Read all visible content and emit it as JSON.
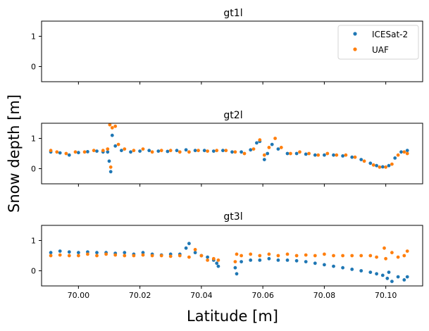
{
  "figure": {
    "ylabel": "Snow depth [m]",
    "xlabel": "Latitude [m]"
  },
  "colors": {
    "icesat2": "#1f77b4",
    "uaf": "#ff7f0e"
  },
  "chart_data": [
    {
      "type": "scatter",
      "title": "gt1l",
      "xlabel": "",
      "ylabel": "",
      "xlim": [
        69.988,
        70.112
      ],
      "ylim": [
        -0.5,
        1.5
      ],
      "yticks": [
        0,
        1
      ],
      "xticks": [
        70.0,
        70.02,
        70.04,
        70.06,
        70.08,
        70.1
      ],
      "show_xticklabels": false,
      "legend": {
        "placement": "top-right",
        "entries": [
          "ICESat-2",
          "UAF"
        ]
      },
      "series": [
        {
          "name": "ICESat-2",
          "color": "#1f77b4",
          "points": []
        },
        {
          "name": "UAF",
          "color": "#ff7f0e",
          "points": []
        }
      ]
    },
    {
      "type": "scatter",
      "title": "gt2l",
      "xlabel": "",
      "ylabel": "",
      "xlim": [
        69.988,
        70.112
      ],
      "ylim": [
        -0.5,
        1.5
      ],
      "yticks": [
        0,
        1
      ],
      "xticks": [
        70.0,
        70.02,
        70.04,
        70.06,
        70.08,
        70.1
      ],
      "show_xticklabels": false,
      "series": [
        {
          "name": "ICESat-2",
          "color": "#1f77b4",
          "points": [
            [
              69.991,
              0.55
            ],
            [
              69.994,
              0.52
            ],
            [
              69.997,
              0.45
            ],
            [
              70.0,
              0.53
            ],
            [
              70.003,
              0.56
            ],
            [
              70.006,
              0.58
            ],
            [
              70.008,
              0.55
            ],
            [
              70.0095,
              0.55
            ],
            [
              70.01,
              0.25
            ],
            [
              70.0105,
              -0.1
            ],
            [
              70.011,
              1.1
            ],
            [
              70.012,
              0.75
            ],
            [
              70.014,
              0.6
            ],
            [
              70.017,
              0.55
            ],
            [
              70.02,
              0.58
            ],
            [
              70.023,
              0.6
            ],
            [
              70.026,
              0.58
            ],
            [
              70.029,
              0.57
            ],
            [
              70.032,
              0.6
            ],
            [
              70.035,
              0.62
            ],
            [
              70.038,
              0.6
            ],
            [
              70.041,
              0.6
            ],
            [
              70.044,
              0.58
            ],
            [
              70.047,
              0.6
            ],
            [
              70.05,
              0.55
            ],
            [
              70.053,
              0.55
            ],
            [
              70.056,
              0.62
            ],
            [
              70.058,
              0.85
            ],
            [
              70.059,
              0.9
            ],
            [
              70.0605,
              0.3
            ],
            [
              70.0615,
              0.5
            ],
            [
              70.063,
              0.8
            ],
            [
              70.065,
              0.65
            ],
            [
              70.068,
              0.5
            ],
            [
              70.071,
              0.5
            ],
            [
              70.074,
              0.48
            ],
            [
              70.077,
              0.45
            ],
            [
              70.08,
              0.45
            ],
            [
              70.083,
              0.45
            ],
            [
              70.086,
              0.42
            ],
            [
              70.089,
              0.38
            ],
            [
              70.092,
              0.3
            ],
            [
              70.095,
              0.18
            ],
            [
              70.097,
              0.1
            ],
            [
              70.099,
              0.06
            ],
            [
              70.101,
              0.1
            ],
            [
              70.103,
              0.35
            ],
            [
              70.105,
              0.55
            ],
            [
              70.107,
              0.6
            ]
          ]
        },
        {
          "name": "UAF",
          "color": "#ff7f0e",
          "points": [
            [
              69.991,
              0.6
            ],
            [
              69.993,
              0.55
            ],
            [
              69.996,
              0.5
            ],
            [
              69.999,
              0.55
            ],
            [
              70.002,
              0.55
            ],
            [
              70.005,
              0.6
            ],
            [
              70.008,
              0.6
            ],
            [
              70.0095,
              0.65
            ],
            [
              70.0102,
              1.45
            ],
            [
              70.0105,
              0.05
            ],
            [
              70.011,
              1.35
            ],
            [
              70.012,
              1.4
            ],
            [
              70.013,
              0.8
            ],
            [
              70.015,
              0.65
            ],
            [
              70.018,
              0.6
            ],
            [
              70.021,
              0.65
            ],
            [
              70.024,
              0.55
            ],
            [
              70.027,
              0.6
            ],
            [
              70.03,
              0.6
            ],
            [
              70.033,
              0.55
            ],
            [
              70.036,
              0.55
            ],
            [
              70.039,
              0.6
            ],
            [
              70.042,
              0.58
            ],
            [
              70.045,
              0.6
            ],
            [
              70.048,
              0.6
            ],
            [
              70.051,
              0.55
            ],
            [
              70.054,
              0.5
            ],
            [
              70.057,
              0.65
            ],
            [
              70.059,
              0.95
            ],
            [
              70.0605,
              0.45
            ],
            [
              70.062,
              0.7
            ],
            [
              70.064,
              1.0
            ],
            [
              70.066,
              0.7
            ],
            [
              70.069,
              0.5
            ],
            [
              70.072,
              0.55
            ],
            [
              70.075,
              0.5
            ],
            [
              70.078,
              0.45
            ],
            [
              70.081,
              0.5
            ],
            [
              70.084,
              0.45
            ],
            [
              70.087,
              0.45
            ],
            [
              70.09,
              0.38
            ],
            [
              70.093,
              0.25
            ],
            [
              70.096,
              0.12
            ],
            [
              70.098,
              0.05
            ],
            [
              70.1,
              0.05
            ],
            [
              70.102,
              0.15
            ],
            [
              70.104,
              0.45
            ],
            [
              70.106,
              0.55
            ],
            [
              70.107,
              0.5
            ]
          ]
        }
      ]
    },
    {
      "type": "scatter",
      "title": "gt3l",
      "xlabel": "Latitude [m]",
      "ylabel": "",
      "xlim": [
        69.988,
        70.112
      ],
      "ylim": [
        -0.5,
        1.5
      ],
      "yticks": [
        0,
        1
      ],
      "xticks": [
        70.0,
        70.02,
        70.04,
        70.06,
        70.08,
        70.1
      ],
      "xticklabels": [
        "70.00",
        "70.02",
        "70.04",
        "70.06",
        "70.08",
        "70.10"
      ],
      "show_xticklabels": true,
      "series": [
        {
          "name": "ICESat-2",
          "color": "#1f77b4",
          "points": [
            [
              69.991,
              0.6
            ],
            [
              69.994,
              0.65
            ],
            [
              69.997,
              0.62
            ],
            [
              70.0,
              0.6
            ],
            [
              70.003,
              0.62
            ],
            [
              70.006,
              0.6
            ],
            [
              70.009,
              0.6
            ],
            [
              70.012,
              0.58
            ],
            [
              70.015,
              0.6
            ],
            [
              70.018,
              0.55
            ],
            [
              70.021,
              0.6
            ],
            [
              70.024,
              0.55
            ],
            [
              70.027,
              0.52
            ],
            [
              70.03,
              0.55
            ],
            [
              70.033,
              0.55
            ],
            [
              70.035,
              0.75
            ],
            [
              70.036,
              0.9
            ],
            [
              70.038,
              0.6
            ],
            [
              70.04,
              0.5
            ],
            [
              70.042,
              0.45
            ],
            [
              70.044,
              0.35
            ],
            [
              70.045,
              0.25
            ],
            [
              70.0455,
              0.15
            ],
            [
              70.051,
              0.1
            ],
            [
              70.0515,
              -0.1
            ],
            [
              70.053,
              0.3
            ],
            [
              70.056,
              0.35
            ],
            [
              70.059,
              0.35
            ],
            [
              70.062,
              0.4
            ],
            [
              70.065,
              0.35
            ],
            [
              70.068,
              0.35
            ],
            [
              70.071,
              0.33
            ],
            [
              70.074,
              0.3
            ],
            [
              70.077,
              0.25
            ],
            [
              70.08,
              0.2
            ],
            [
              70.083,
              0.15
            ],
            [
              70.086,
              0.1
            ],
            [
              70.089,
              0.05
            ],
            [
              70.092,
              0.0
            ],
            [
              70.095,
              -0.05
            ],
            [
              70.097,
              -0.1
            ],
            [
              70.099,
              -0.15
            ],
            [
              70.1005,
              -0.25
            ],
            [
              70.101,
              -0.05
            ],
            [
              70.102,
              -0.35
            ],
            [
              70.104,
              -0.2
            ],
            [
              70.106,
              -0.3
            ],
            [
              70.107,
              -0.2
            ]
          ]
        },
        {
          "name": "UAF",
          "color": "#ff7f0e",
          "points": [
            [
              69.991,
              0.5
            ],
            [
              69.994,
              0.52
            ],
            [
              69.997,
              0.5
            ],
            [
              70.0,
              0.5
            ],
            [
              70.003,
              0.55
            ],
            [
              70.006,
              0.5
            ],
            [
              70.009,
              0.55
            ],
            [
              70.012,
              0.52
            ],
            [
              70.015,
              0.5
            ],
            [
              70.018,
              0.5
            ],
            [
              70.021,
              0.52
            ],
            [
              70.024,
              0.5
            ],
            [
              70.027,
              0.5
            ],
            [
              70.03,
              0.48
            ],
            [
              70.033,
              0.5
            ],
            [
              70.036,
              0.45
            ],
            [
              70.038,
              0.7
            ],
            [
              70.04,
              0.5
            ],
            [
              70.042,
              0.35
            ],
            [
              70.044,
              0.4
            ],
            [
              70.0455,
              0.35
            ],
            [
              70.051,
              0.3
            ],
            [
              70.0515,
              0.55
            ],
            [
              70.053,
              0.5
            ],
            [
              70.056,
              0.55
            ],
            [
              70.059,
              0.5
            ],
            [
              70.062,
              0.55
            ],
            [
              70.065,
              0.5
            ],
            [
              70.068,
              0.55
            ],
            [
              70.071,
              0.5
            ],
            [
              70.074,
              0.52
            ],
            [
              70.077,
              0.5
            ],
            [
              70.08,
              0.55
            ],
            [
              70.083,
              0.5
            ],
            [
              70.086,
              0.5
            ],
            [
              70.089,
              0.5
            ],
            [
              70.092,
              0.5
            ],
            [
              70.095,
              0.5
            ],
            [
              70.097,
              0.45
            ],
            [
              70.0995,
              0.75
            ],
            [
              70.1,
              0.4
            ],
            [
              70.102,
              0.6
            ],
            [
              70.104,
              0.45
            ],
            [
              70.106,
              0.5
            ],
            [
              70.107,
              0.65
            ]
          ]
        }
      ]
    }
  ]
}
